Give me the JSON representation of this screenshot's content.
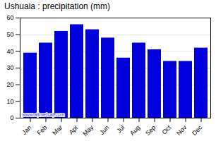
{
  "chart_data": {
    "type": "bar",
    "title": "Ushuaia : precipitation (mm)",
    "categories": [
      "Jan",
      "Feb",
      "Mar",
      "Apr",
      "May",
      "Jun",
      "Jul",
      "Aug",
      "Sep",
      "Oct",
      "Nov",
      "Dec"
    ],
    "values": [
      39,
      45,
      52,
      56,
      53,
      48,
      36,
      45,
      41,
      34,
      34,
      42
    ],
    "color": "#0000dd",
    "ylim": [
      0,
      60
    ],
    "yticks": [
      0,
      10,
      20,
      30,
      40,
      50,
      60
    ],
    "grid": true,
    "annotations": [
      "www.allmetsat.com"
    ]
  }
}
